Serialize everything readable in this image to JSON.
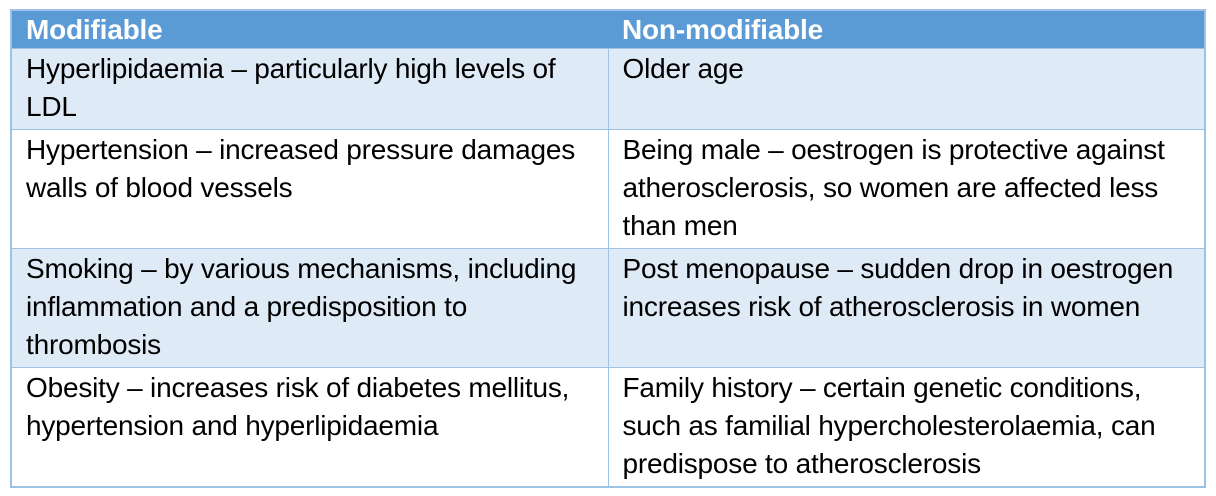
{
  "table": {
    "headers": [
      "Modifiable",
      "Non-modifiable"
    ],
    "rows": [
      [
        "Hyperlipidaemia – particularly high levels of LDL",
        "Older age"
      ],
      [
        "Hypertension – increased pressure damages walls of blood vessels",
        "Being male – oestrogen is protective against atherosclerosis, so women are affected less than men"
      ],
      [
        "Smoking – by various mechanisms, including inflammation and a predisposition to thrombosis",
        "Post menopause – sudden drop in oestrogen increases risk of atherosclerosis in women"
      ],
      [
        "Obesity – increases risk of diabetes mellitus, hypertension and hyperlipidaemia",
        "Family history – certain genetic conditions, such as familial hypercholesterolaemia, can predispose to atherosclerosis"
      ]
    ],
    "colors": {
      "header_bg": "#5B9BD5",
      "band_row_bg": "#DEEAF6",
      "border": "#9CC3E5",
      "header_text": "#FFFFFF",
      "body_text": "#000000",
      "page_bg": "#FFFFFF"
    }
  }
}
